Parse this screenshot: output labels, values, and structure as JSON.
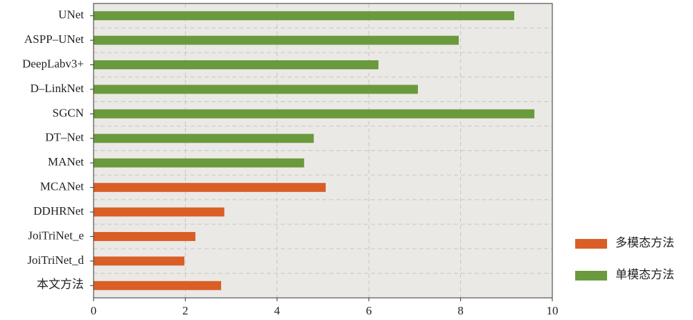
{
  "chart_data": {
    "type": "bar",
    "orientation": "horizontal",
    "categories": [
      "UNet",
      "ASPP–UNet",
      "DeepLabv3+",
      "D–LinkNet",
      "SGCN",
      "DT–Net",
      "MANet",
      "MCANet",
      "DDHRNet",
      "JoiTriNet_e",
      "JoiTriNet_d",
      "本文方法"
    ],
    "series": [
      {
        "name": "多模态方法",
        "color": "#d95f26",
        "values": [
          null,
          null,
          null,
          null,
          null,
          null,
          null,
          5.06,
          2.85,
          2.22,
          1.98,
          2.78
        ]
      },
      {
        "name": "单模态方法",
        "color": "#6a9a3d",
        "values": [
          9.17,
          7.96,
          6.21,
          7.07,
          9.61,
          4.8,
          4.59,
          null,
          null,
          null,
          null,
          null
        ]
      }
    ],
    "xlim": [
      0,
      10
    ],
    "xticks": [
      0,
      2,
      4,
      6,
      8,
      10
    ],
    "grid": true
  }
}
